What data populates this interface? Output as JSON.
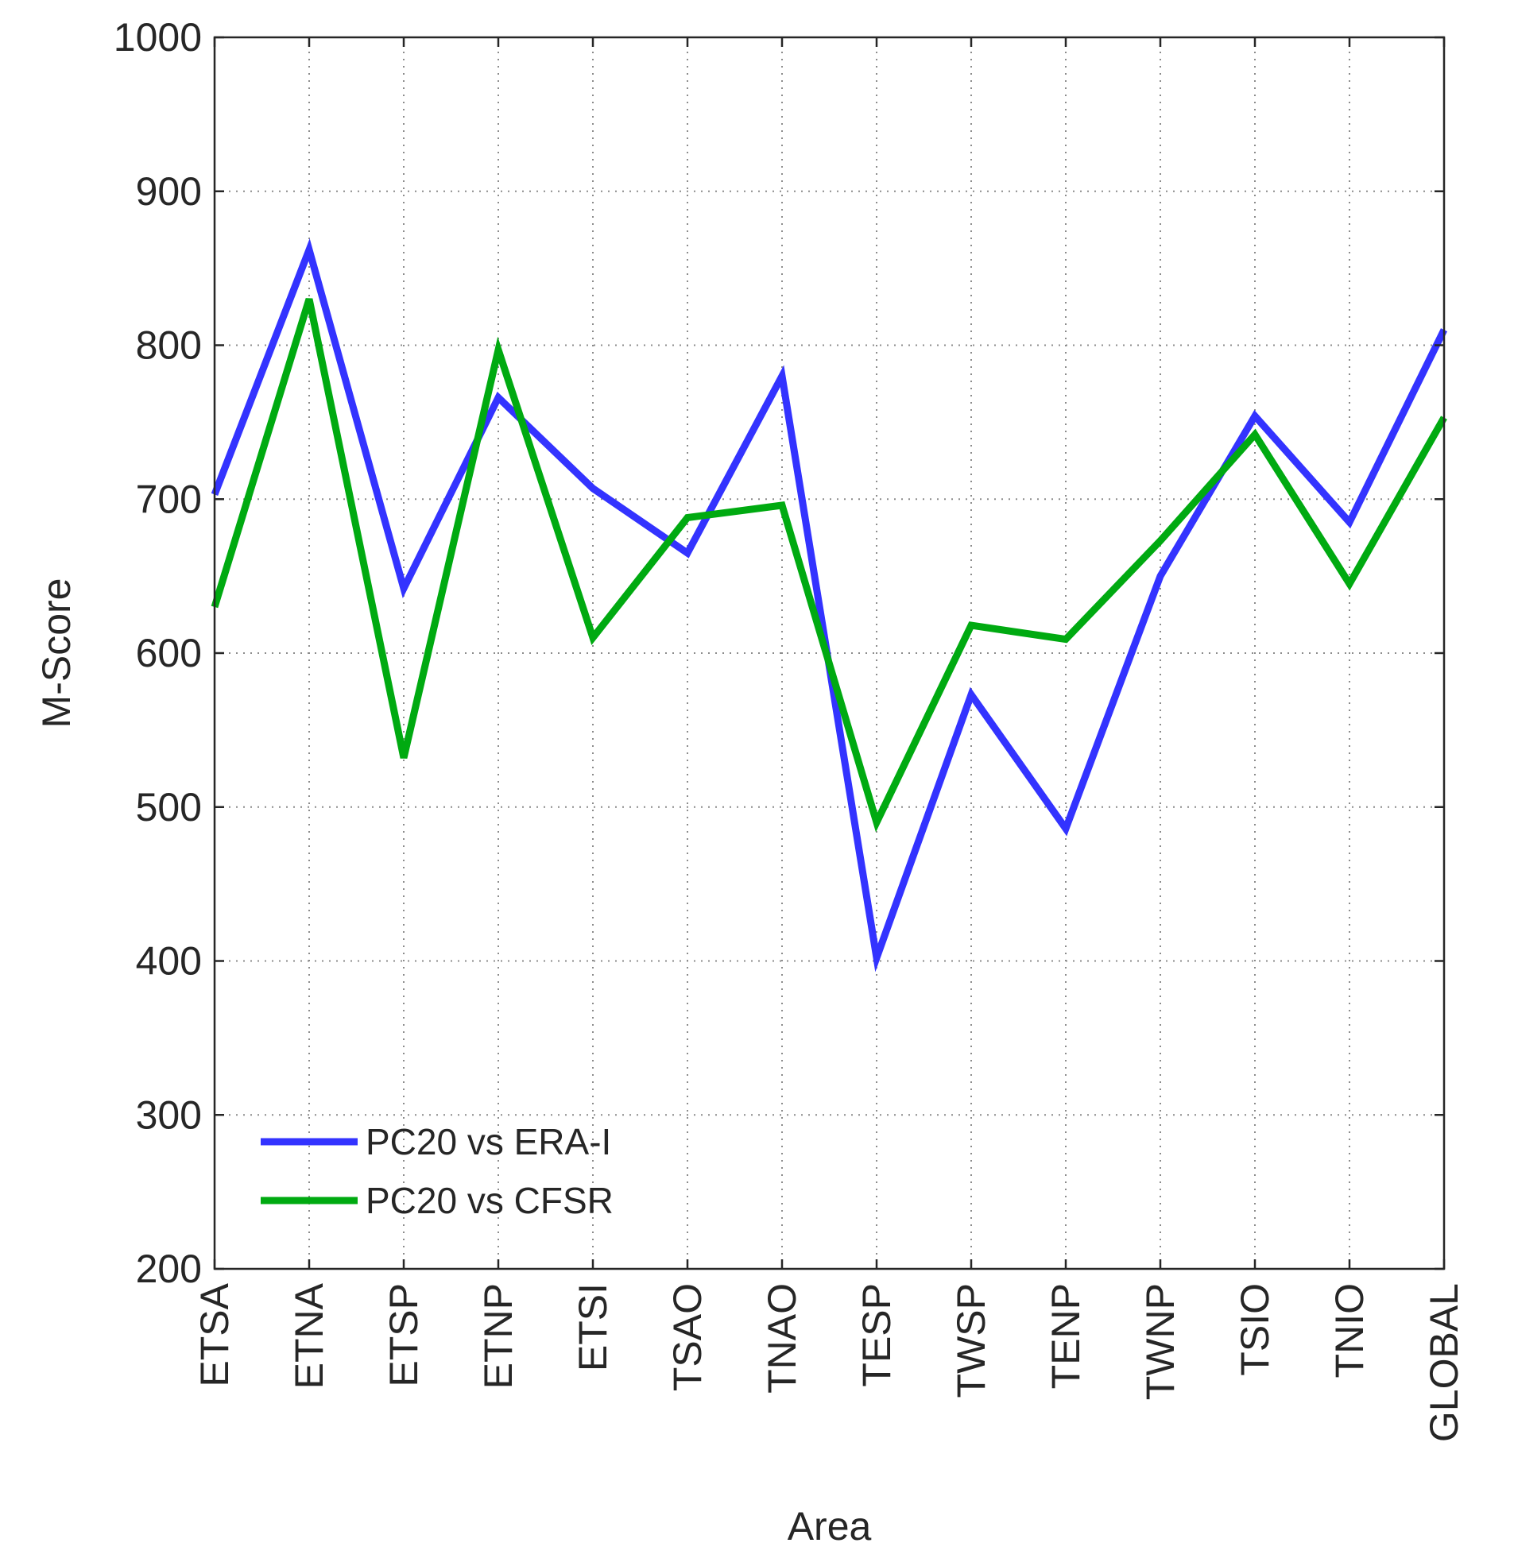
{
  "colors": {
    "series_1": "#3333ff",
    "series_2": "#00aa11",
    "axis": "#262626",
    "grid": "#8c8c8c"
  },
  "chart_data": {
    "type": "line",
    "title": "",
    "xlabel": "Area",
    "ylabel": "M-Score",
    "categories": [
      "ETSA",
      "ETNA",
      "ETSP",
      "ETNP",
      "ETSI",
      "TSAO",
      "TNAO",
      "TESP",
      "TWSP",
      "TENP",
      "TWNP",
      "TSIO",
      "TNIO",
      "GLOBAL"
    ],
    "ylim": [
      200,
      1000
    ],
    "yticks": [
      "200",
      "300",
      "400",
      "500",
      "600",
      "700",
      "800",
      "900",
      "1000"
    ],
    "grid": true,
    "legend_position": "bottom-left",
    "series": [
      {
        "name": "PC20 vs ERA-I",
        "color": "#3333ff",
        "values": [
          703,
          862,
          642,
          766,
          707,
          665,
          780,
          402,
          573,
          486,
          650,
          754,
          685,
          810
        ]
      },
      {
        "name": "PC20 vs CFSR",
        "color": "#00aa11",
        "values": [
          630,
          830,
          532,
          797,
          610,
          688,
          696,
          490,
          618,
          609,
          673,
          742,
          645,
          753
        ]
      }
    ]
  }
}
